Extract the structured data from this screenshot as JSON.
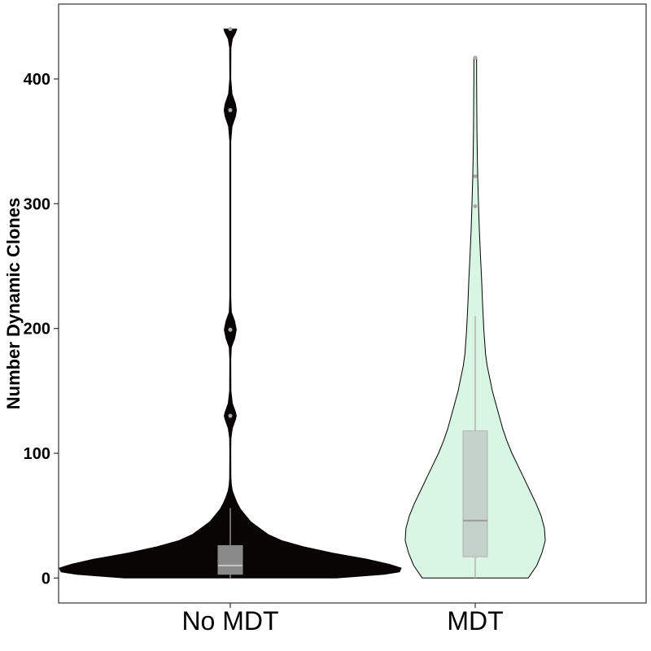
{
  "chart_data": {
    "type": "violin",
    "title": "",
    "xlabel": "",
    "ylabel": "Number Dynamic Clones",
    "ylim": [
      -20,
      460
    ],
    "yticks": [
      0,
      100,
      200,
      300,
      400
    ],
    "grid": false,
    "legend": "none",
    "categories": [
      "No MDT",
      "MDT"
    ],
    "series": [
      {
        "fill": "#0a0505",
        "stroke": "#000000",
        "box": {
          "min": 0,
          "q1": 3,
          "median": 10,
          "q3": 26,
          "whisker_high": 56,
          "color": "#8a8a8a"
        },
        "outliers": [
          130,
          199,
          375,
          440
        ],
        "density_profile": [
          [
            0,
            0.62
          ],
          [
            3,
            0.9
          ],
          [
            5,
            0.99
          ],
          [
            8,
            1.0
          ],
          [
            11,
            0.93
          ],
          [
            15,
            0.8
          ],
          [
            20,
            0.6
          ],
          [
            25,
            0.43
          ],
          [
            30,
            0.3
          ],
          [
            35,
            0.22
          ],
          [
            40,
            0.17
          ],
          [
            45,
            0.12
          ],
          [
            50,
            0.09
          ],
          [
            55,
            0.06
          ],
          [
            60,
            0.04
          ],
          [
            65,
            0.025
          ],
          [
            70,
            0.012
          ],
          [
            75,
            0.006
          ],
          [
            80,
            0.004
          ],
          [
            100,
            0.003
          ],
          [
            112,
            0.004
          ],
          [
            120,
            0.012
          ],
          [
            127,
            0.03
          ],
          [
            130,
            0.035
          ],
          [
            133,
            0.03
          ],
          [
            140,
            0.012
          ],
          [
            150,
            0.004
          ],
          [
            175,
            0.003
          ],
          [
            185,
            0.006
          ],
          [
            192,
            0.025
          ],
          [
            199,
            0.035
          ],
          [
            206,
            0.025
          ],
          [
            213,
            0.006
          ],
          [
            225,
            0.003
          ],
          [
            350,
            0.003
          ],
          [
            362,
            0.01
          ],
          [
            370,
            0.03
          ],
          [
            375,
            0.036
          ],
          [
            380,
            0.03
          ],
          [
            388,
            0.01
          ],
          [
            400,
            0.003
          ],
          [
            425,
            0.004
          ],
          [
            432,
            0.012
          ],
          [
            437,
            0.03
          ],
          [
            440,
            0.038
          ]
        ]
      },
      {
        "fill": "#d9f5e3",
        "stroke": "#000000",
        "box": {
          "min": 0,
          "q1": 17,
          "median": 46,
          "q3": 118,
          "whisker_high": 210,
          "color": "#b4b4b4"
        },
        "outliers": [
          298,
          322,
          417
        ],
        "density_profile": [
          [
            0,
            0.31
          ],
          [
            10,
            0.36
          ],
          [
            20,
            0.39
          ],
          [
            30,
            0.41
          ],
          [
            40,
            0.405
          ],
          [
            50,
            0.385
          ],
          [
            60,
            0.355
          ],
          [
            70,
            0.32
          ],
          [
            80,
            0.285
          ],
          [
            90,
            0.25
          ],
          [
            100,
            0.215
          ],
          [
            110,
            0.185
          ],
          [
            120,
            0.16
          ],
          [
            130,
            0.14
          ],
          [
            140,
            0.12
          ],
          [
            150,
            0.1
          ],
          [
            160,
            0.085
          ],
          [
            170,
            0.07
          ],
          [
            180,
            0.06
          ],
          [
            200,
            0.05
          ],
          [
            220,
            0.043
          ],
          [
            240,
            0.037
          ],
          [
            260,
            0.03
          ],
          [
            280,
            0.024
          ],
          [
            300,
            0.019
          ],
          [
            320,
            0.015
          ],
          [
            340,
            0.012
          ],
          [
            360,
            0.01
          ],
          [
            380,
            0.009
          ],
          [
            400,
            0.008
          ],
          [
            417,
            0.008
          ]
        ]
      }
    ]
  }
}
